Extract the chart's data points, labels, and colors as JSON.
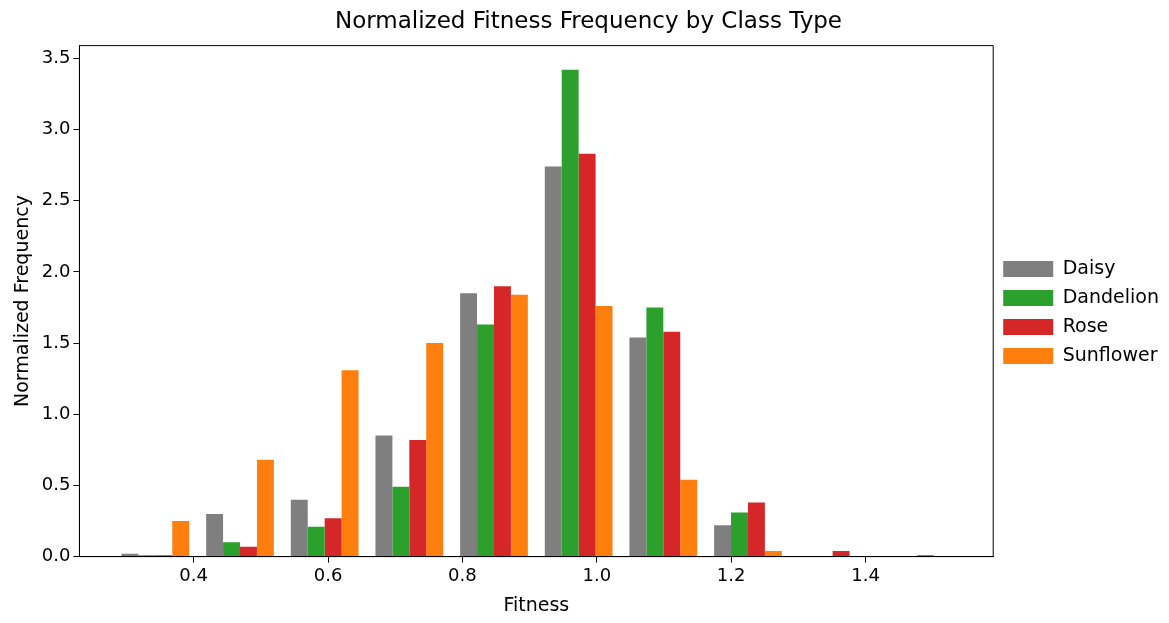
{
  "chart_data": {
    "type": "histogram",
    "title": "Normalized Fitness Frequency by Class Type",
    "xlabel": "Fitness",
    "ylabel": "Normalized Frequency",
    "bins": [
      0.28,
      0.406,
      0.532,
      0.658,
      0.784,
      0.91,
      1.036,
      1.162,
      1.288,
      1.414,
      1.54
    ],
    "series": [
      {
        "name": "Daisy",
        "color": "#7f7f7f",
        "values": [
          0.02,
          0.3,
          0.4,
          0.85,
          1.85,
          2.74,
          1.54,
          0.22,
          0,
          0
        ]
      },
      {
        "name": "Dandelion",
        "color": "#2ca02c",
        "values": [
          0.01,
          0.1,
          0.21,
          0.49,
          1.63,
          3.42,
          1.75,
          0.31,
          0,
          0
        ]
      },
      {
        "name": "Rose",
        "color": "#d62728",
        "values": [
          0.01,
          0.07,
          0.27,
          0.82,
          1.9,
          2.83,
          1.58,
          0.38,
          0.04,
          0.01
        ]
      },
      {
        "name": "Sunflower",
        "color": "#ff7f0e",
        "values": [
          0.25,
          0.68,
          1.31,
          1.5,
          1.84,
          1.76,
          0.54,
          0.04,
          0,
          0
        ]
      }
    ],
    "xlim": [
      0.23,
      1.59
    ],
    "xticks": [
      0.4,
      0.6,
      0.8,
      {
        "value": 1,
        "label": "1.0"
      },
      1.2,
      1.4
    ],
    "ylim": [
      0,
      3.59
    ],
    "yticks": [
      {
        "value": 0,
        "label": "0.0"
      },
      0.5,
      {
        "value": 1,
        "label": "1.0"
      },
      1.5,
      {
        "value": 2,
        "label": "2.0"
      },
      2.5,
      {
        "value": 3,
        "label": "3.0"
      },
      3.5
    ],
    "grid": false,
    "legend": "right"
  }
}
